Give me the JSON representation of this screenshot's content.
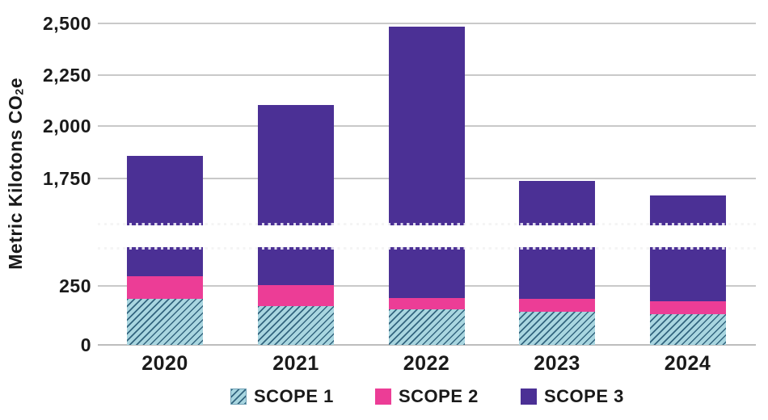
{
  "chart_data": {
    "type": "bar",
    "stacked": true,
    "title": "",
    "categories": [
      "2020",
      "2021",
      "2022",
      "2023",
      "2024"
    ],
    "series": [
      {
        "name": "SCOPE 1",
        "style": "hatched",
        "color": "#A9D6E0",
        "hatch_color": "#33657F",
        "values": [
          195,
          165,
          150,
          140,
          130
        ]
      },
      {
        "name": "SCOPE 2",
        "style": "solid",
        "color": "#EC3D96",
        "values": [
          95,
          90,
          50,
          55,
          55
        ]
      },
      {
        "name": "SCOPE 3",
        "style": "solid",
        "color": "#4B3095",
        "values": [
          1570,
          1850,
          2280,
          1545,
          1485
        ]
      }
    ],
    "stack_totals": [
      1860,
      2105,
      2480,
      1740,
      1670
    ],
    "ylabel_parts": {
      "prefix": "Metric Kilotons CO",
      "sub": "2",
      "suffix": "e"
    },
    "y_ticks": [
      "2,500",
      "2,250",
      "2,000",
      "1,750",
      "250",
      "0"
    ],
    "y_tick_values": [
      2500,
      2250,
      2000,
      1750,
      250,
      0
    ],
    "axis_break": {
      "enabled": true,
      "hidden_range_approx": [
        420,
        1530
      ]
    },
    "grid": true,
    "legend_position": "bottom",
    "legend": [
      "SCOPE 1",
      "SCOPE 2",
      "SCOPE 3"
    ],
    "colors": {
      "grid": "#C9C9C9",
      "break_dots": "#C9C9C9",
      "text": "#1A1A1A",
      "background": "#FFFFFF"
    }
  }
}
